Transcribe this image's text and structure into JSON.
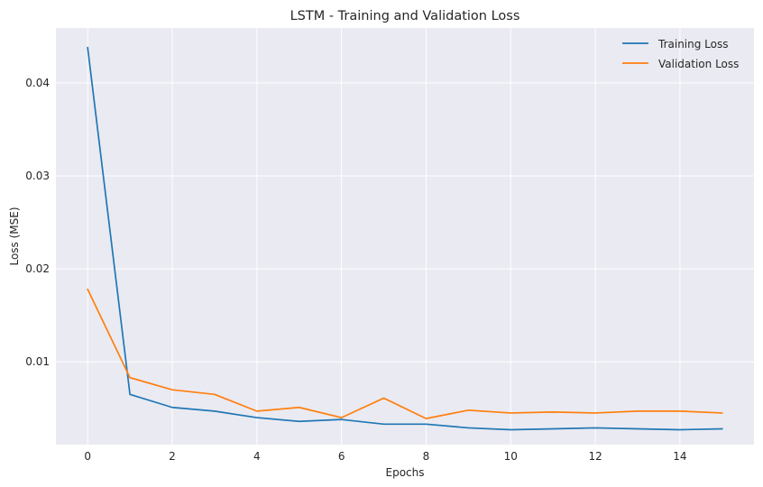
{
  "chart_data": {
    "type": "line",
    "title": "LSTM - Training and Validation Loss",
    "xlabel": "Epochs",
    "ylabel": "Loss (MSE)",
    "xlim": [
      -0.75,
      15.75
    ],
    "ylim": [
      0.0011,
      0.0459
    ],
    "xticks": [
      0,
      2,
      4,
      6,
      8,
      10,
      12,
      14
    ],
    "yticks": [
      0.01,
      0.02,
      0.03,
      0.04
    ],
    "ytick_labels": [
      "0.01",
      "0.02",
      "0.03",
      "0.04"
    ],
    "grid": true,
    "legend": "top-right",
    "x": [
      0,
      1,
      2,
      3,
      4,
      5,
      6,
      7,
      8,
      9,
      10,
      11,
      12,
      13,
      14,
      15
    ],
    "series": [
      {
        "name": "Training Loss",
        "color": "#1f77b4",
        "values": [
          0.0438,
          0.0065,
          0.0051,
          0.0047,
          0.004,
          0.0036,
          0.0038,
          0.0033,
          0.0033,
          0.0029,
          0.0027,
          0.0028,
          0.0029,
          0.0028,
          0.0027,
          0.0028
        ]
      },
      {
        "name": "Validation Loss",
        "color": "#ff7f0e",
        "values": [
          0.0178,
          0.0083,
          0.007,
          0.0065,
          0.0047,
          0.0051,
          0.004,
          0.0061,
          0.0039,
          0.0048,
          0.0045,
          0.0046,
          0.0045,
          0.0047,
          0.0047,
          0.0045
        ]
      }
    ]
  }
}
